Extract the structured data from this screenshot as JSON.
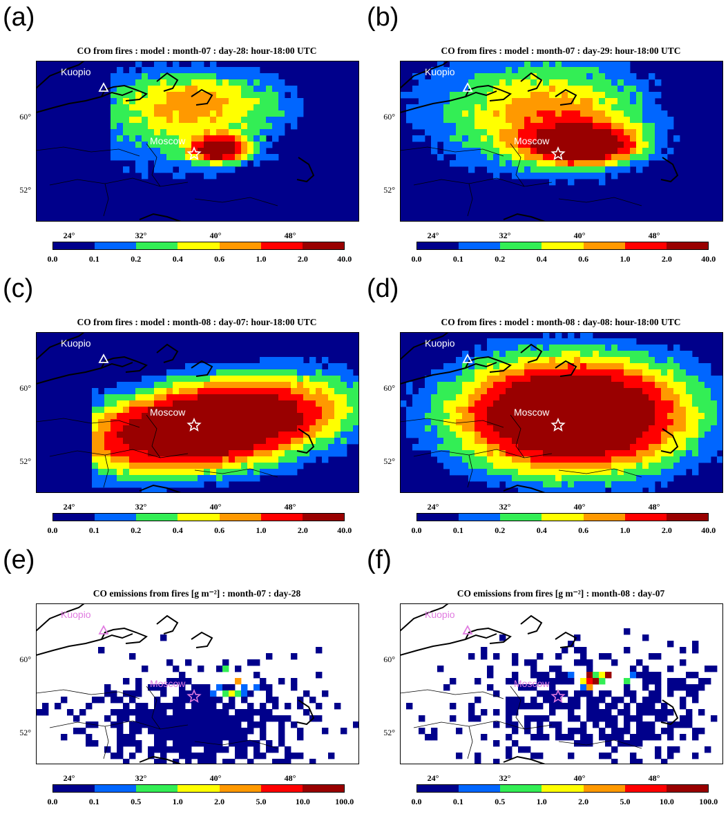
{
  "panels": [
    {
      "letter": "(a)",
      "title": "CO from fires : model : month-07 : day-28: hour-18:00 UTC",
      "mode": "model",
      "field": "a",
      "site_color": "#ffffff",
      "colorbar_labels": [
        "0.0",
        "0.1",
        "0.2",
        "0.4",
        "0.6",
        "1.0",
        "2.0",
        "40.0"
      ]
    },
    {
      "letter": "(b)",
      "title": "CO from fires : model : month-07 : day-29: hour-18:00 UTC",
      "mode": "model",
      "field": "b",
      "site_color": "#ffffff",
      "colorbar_labels": [
        "0.0",
        "0.1",
        "0.2",
        "0.4",
        "0.6",
        "1.0",
        "2.0",
        "40.0"
      ]
    },
    {
      "letter": "(c)",
      "title": "CO from fires : model : month-08 : day-07: hour-18:00 UTC",
      "mode": "model",
      "field": "c",
      "site_color": "#ffffff",
      "colorbar_labels": [
        "0.0",
        "0.1",
        "0.2",
        "0.4",
        "0.6",
        "1.0",
        "2.0",
        "40.0"
      ]
    },
    {
      "letter": "(d)",
      "title": "CO from fires : model : month-08 : day-08: hour-18:00 UTC",
      "mode": "model",
      "field": "d",
      "site_color": "#ffffff",
      "colorbar_labels": [
        "0.0",
        "0.1",
        "0.2",
        "0.4",
        "0.6",
        "1.0",
        "2.0",
        "40.0"
      ]
    },
    {
      "letter": "(e)",
      "title": "CO emissions from fires [g m⁻²] : month-07 : day-28",
      "mode": "emissions",
      "field": "e",
      "site_color": "#e07be0",
      "colorbar_labels": [
        "0.0",
        "0.1",
        "0.5",
        "1.0",
        "2.0",
        "5.0",
        "10.0",
        "100.0"
      ]
    },
    {
      "letter": "(f)",
      "title": "CO emissions from fires [g m⁻²] : month-08 : day-07",
      "mode": "emissions",
      "field": "f",
      "site_color": "#e07be0",
      "colorbar_labels": [
        "0.0",
        "0.1",
        "0.5",
        "1.0",
        "2.0",
        "5.0",
        "10.0",
        "100.0"
      ]
    }
  ],
  "map": {
    "lat_ticks": [
      "60°",
      "52°"
    ],
    "lon_ticks": [
      "24°",
      "32°",
      "40°",
      "48°"
    ],
    "sites": {
      "kuopio": "Kuopio",
      "moscow": "Moscow"
    }
  },
  "colors": {
    "levels": [
      "#00008b",
      "#0066ff",
      "#33ee55",
      "#ffff00",
      "#ff9900",
      "#ff0000",
      "#990000"
    ],
    "background_model": "#00008b",
    "background_emissions": "#ffffff"
  }
}
